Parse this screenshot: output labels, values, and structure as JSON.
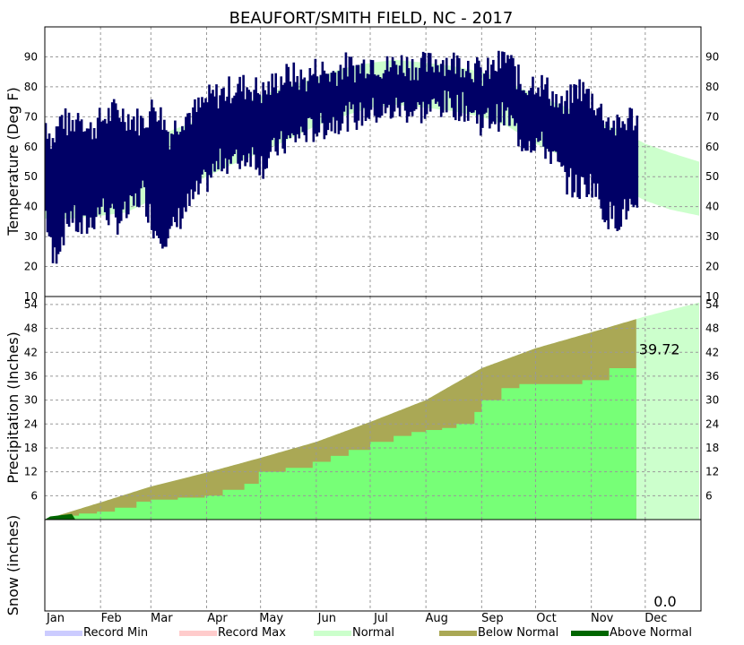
{
  "chart_data": {
    "type": "climate-summary",
    "title": "BEAUFORT/SMITH FIELD, NC - 2017",
    "months": [
      "Jan",
      "Feb",
      "Mar",
      "Apr",
      "May",
      "Jun",
      "Jul",
      "Aug",
      "Sep",
      "Oct",
      "Nov",
      "Dec"
    ],
    "month_days": [
      31,
      28,
      31,
      30,
      31,
      30,
      31,
      31,
      30,
      31,
      30,
      31
    ],
    "data_end_day": 330,
    "colors": {
      "observed_temp": "#000066",
      "normal_band": "#ccffcc",
      "observed_precip": "#77ff77",
      "below_normal": "#aaa855",
      "above_normal": "#006600",
      "record_min": "#ccccff",
      "record_max": "#ffcccc",
      "grid": "#999999"
    },
    "temperature": {
      "ylabel": "Temperature (Deg F)",
      "ylim": [
        10,
        100
      ],
      "ticks": [
        "20",
        "30",
        "40",
        "50",
        "60",
        "70",
        "80",
        "90"
      ],
      "tick_values": [
        20,
        30,
        40,
        50,
        60,
        70,
        80,
        90
      ],
      "bottom_label": "10",
      "normal_days": [
        1,
        15,
        32,
        46,
        60,
        74,
        91,
        105,
        121,
        135,
        152,
        166,
        182,
        196,
        213,
        227,
        244,
        258,
        274,
        288,
        305,
        319,
        335,
        349,
        365
      ],
      "normal_high": [
        55,
        56,
        58,
        60,
        63,
        66,
        70,
        73,
        77,
        80,
        83,
        86,
        88,
        89,
        88,
        87,
        85,
        82,
        77,
        74,
        69,
        66,
        61,
        58,
        55
      ],
      "normal_low": [
        36,
        36,
        37,
        38,
        42,
        45,
        50,
        54,
        58,
        62,
        67,
        70,
        73,
        74,
        73,
        72,
        70,
        67,
        61,
        57,
        51,
        47,
        42,
        39,
        37
      ],
      "observed_anchor_days": [
        1,
        5,
        10,
        15,
        20,
        25,
        32,
        40,
        47,
        55,
        62,
        70,
        77,
        85,
        92,
        100,
        107,
        115,
        122,
        130,
        137,
        145,
        152,
        160,
        167,
        175,
        182,
        190,
        197,
        205,
        213,
        220,
        227,
        235,
        244,
        250,
        258,
        266,
        274,
        282,
        289,
        297,
        305,
        312,
        319,
        326,
        330
      ],
      "observed_high": [
        68,
        62,
        70,
        66,
        72,
        65,
        69,
        72,
        70,
        68,
        74,
        64,
        70,
        72,
        76,
        78,
        80,
        80,
        78,
        82,
        84,
        82,
        86,
        84,
        87,
        86,
        89,
        86,
        88,
        87,
        87,
        89,
        88,
        88,
        84,
        86,
        90,
        80,
        82,
        78,
        72,
        80,
        76,
        70,
        66,
        70,
        69
      ],
      "observed_low": [
        38,
        22,
        30,
        38,
        32,
        34,
        40,
        35,
        38,
        45,
        32,
        30,
        38,
        44,
        50,
        56,
        55,
        58,
        54,
        60,
        62,
        65,
        66,
        68,
        70,
        70,
        72,
        71,
        73,
        72,
        72,
        74,
        74,
        73,
        68,
        70,
        70,
        62,
        62,
        58,
        50,
        46,
        48,
        38,
        36,
        40,
        35
      ]
    },
    "precipitation": {
      "ylabel": "Precipitation (Inches)",
      "ylim": [
        0,
        56
      ],
      "ticks": [
        "6",
        "12",
        "18",
        "24",
        "30",
        "36",
        "42",
        "48",
        "54"
      ],
      "tick_values": [
        6,
        12,
        18,
        24,
        30,
        36,
        42,
        48,
        54
      ],
      "total_label": "39.72",
      "normal_days": [
        1,
        32,
        60,
        91,
        121,
        152,
        182,
        213,
        244,
        274,
        305,
        335,
        365
      ],
      "normal_cum": [
        0,
        4.3,
        8.3,
        11.8,
        15.5,
        19.5,
        24.5,
        30,
        38,
        43,
        47,
        51,
        54.5
      ],
      "observed_days": [
        1,
        10,
        20,
        30,
        40,
        52,
        60,
        75,
        90,
        100,
        112,
        120,
        135,
        150,
        160,
        170,
        182,
        195,
        205,
        213,
        222,
        230,
        240,
        244,
        255,
        265,
        275,
        300,
        315,
        330
      ],
      "observed_cum": [
        0,
        1,
        1.5,
        2,
        3,
        4.5,
        5,
        5.5,
        6,
        7.5,
        9,
        12,
        13,
        14.5,
        16,
        17.5,
        19.5,
        21,
        22,
        22.5,
        23,
        24,
        27,
        30,
        33,
        34,
        34,
        35,
        38,
        39.72
      ]
    },
    "snow": {
      "ylabel": "Snow (inches)",
      "total_label": "0.0"
    },
    "legend": [
      {
        "label": "Record Min",
        "color": "#ccccff"
      },
      {
        "label": "Record Max",
        "color": "#ffcccc"
      },
      {
        "label": "Normal",
        "color": "#ccffcc"
      },
      {
        "label": "Below Normal",
        "color": "#aaa855"
      },
      {
        "label": "Above Normal",
        "color": "#006600"
      }
    ]
  }
}
